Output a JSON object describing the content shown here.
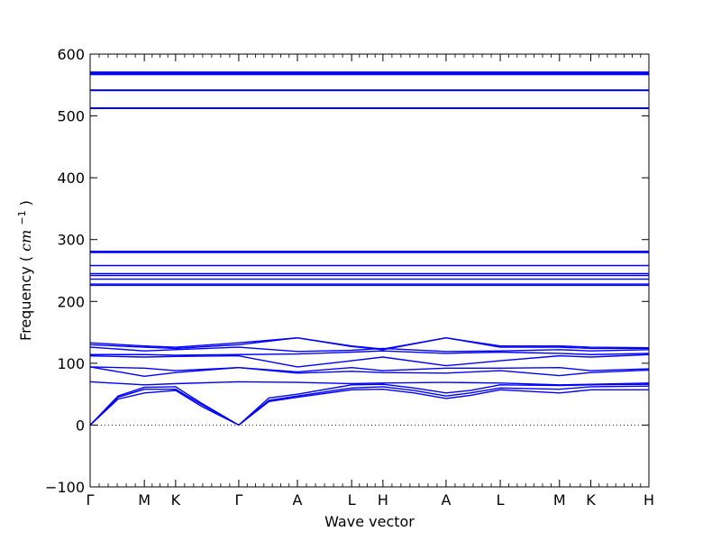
{
  "chart_data": {
    "type": "line",
    "title": "",
    "xlabel": "Wave vector",
    "ylabel_main": "Frequency (",
    "ylabel_unit_base": "cm",
    "ylabel_unit_exp": "−1",
    "ylabel_close": ")",
    "ylim": [
      -100,
      600
    ],
    "yticks": [
      -100,
      0,
      100,
      200,
      300,
      400,
      500,
      600
    ],
    "grid": false,
    "zero_line": true,
    "line_color": "#0000ff",
    "xlim": [
      0,
      100
    ],
    "x_high_symmetry": [
      {
        "label": "Γ",
        "x": 0
      },
      {
        "label": "M",
        "x": 9.7
      },
      {
        "label": "K",
        "x": 15.3
      },
      {
        "label": "Γ",
        "x": 26.6
      },
      {
        "label": "A",
        "x": 37.1
      },
      {
        "label": "L",
        "x": 46.8
      },
      {
        "label": "H",
        "x": 52.4
      },
      {
        "label": "A",
        "x": 63.7
      },
      {
        "label": "L",
        "x": 73.4
      },
      {
        "label": "M",
        "x": 84.0
      },
      {
        "label": "K",
        "x": 89.6
      },
      {
        "label": "H",
        "x": 100
      }
    ],
    "series": [
      {
        "x": [
          0,
          5,
          9.7,
          15.3,
          20,
          26.6
        ],
        "values": [
          0,
          42,
          52,
          56,
          30,
          0
        ]
      },
      {
        "x": [
          0,
          5,
          9.7,
          15.3,
          20,
          26.6
        ],
        "values": [
          0,
          45,
          58,
          58,
          33,
          0
        ]
      },
      {
        "x": [
          0,
          5,
          9.7,
          15.3,
          20,
          26.6
        ],
        "values": [
          0,
          47,
          61,
          62,
          35,
          0
        ]
      },
      {
        "x": [
          26.6,
          32,
          37.1,
          46.8,
          52.4,
          58,
          63.7,
          68,
          73.4,
          84.0,
          89.6,
          100
        ],
        "values": [
          0,
          38,
          45,
          57,
          58,
          52,
          43,
          48,
          57,
          52,
          57,
          57
        ]
      },
      {
        "x": [
          26.6,
          32,
          37.1,
          46.8,
          52.4,
          58,
          63.7,
          68,
          73.4,
          84.0,
          89.6,
          100
        ],
        "values": [
          0,
          40,
          47,
          60,
          62,
          56,
          47,
          52,
          60,
          58,
          62,
          63
        ]
      },
      {
        "x": [
          26.6,
          32,
          37.1,
          46.8,
          52.4,
          58,
          63.7,
          68,
          73.4,
          84.0,
          89.6,
          100
        ],
        "values": [
          0,
          44,
          50,
          65,
          66,
          60,
          52,
          56,
          65,
          64,
          65,
          66
        ]
      },
      {
        "x": [
          0,
          9.7,
          15.3,
          26.6,
          37.1,
          46.8,
          52.4,
          63.7,
          73.4,
          84.0,
          89.6,
          100
        ],
        "values": [
          70,
          65,
          67,
          70,
          69,
          67,
          68,
          69,
          68,
          65,
          66,
          68
        ]
      },
      {
        "x": [
          0,
          9.7,
          15.3,
          26.6,
          37.1,
          46.8,
          52.4,
          63.7,
          73.4,
          84.0,
          89.6,
          100
        ],
        "values": [
          94,
          79,
          85,
          93,
          84,
          87,
          85,
          84,
          88,
          80,
          85,
          89
        ]
      },
      {
        "x": [
          0,
          9.7,
          15.3,
          26.6,
          37.1,
          46.8,
          52.4,
          63.7,
          73.4,
          84.0,
          89.6,
          100
        ],
        "values": [
          94,
          92,
          88,
          93,
          86,
          93,
          88,
          92,
          92,
          93,
          88,
          91
        ]
      },
      {
        "x": [
          0,
          9.7,
          15.3,
          26.6,
          37.1,
          46.8,
          52.4,
          63.7,
          73.4,
          84.0,
          89.6,
          100
        ],
        "values": [
          112,
          110,
          111,
          112,
          94,
          104,
          110,
          96,
          104,
          112,
          110,
          114
        ]
      },
      {
        "x": [
          0,
          9.7,
          15.3,
          26.6,
          37.1,
          46.8,
          52.4,
          63.7,
          73.4,
          84.0,
          89.6,
          100
        ],
        "values": [
          114,
          114,
          113,
          114,
          115,
          118,
          120,
          116,
          118,
          116,
          114,
          116
        ]
      },
      {
        "x": [
          0,
          9.7,
          15.3,
          26.6,
          37.1,
          46.8,
          52.4,
          63.7,
          73.4,
          84.0,
          89.6,
          100
        ],
        "values": [
          126,
          120,
          122,
          126,
          119,
          121,
          124,
          119,
          120,
          122,
          120,
          122
        ]
      },
      {
        "x": [
          0,
          9.7,
          15.3,
          26.6,
          37.1,
          46.8,
          52.4,
          63.7,
          73.4,
          84.0,
          89.6,
          100
        ],
        "values": [
          130,
          126,
          124,
          130,
          141,
          127,
          122,
          141,
          126,
          126,
          124,
          124
        ]
      },
      {
        "x": [
          0,
          9.7,
          15.3,
          26.6,
          37.1,
          46.8,
          52.4,
          63.7,
          73.4,
          84.0,
          89.6,
          100
        ],
        "values": [
          133,
          128,
          126,
          133,
          141,
          128,
          123,
          141,
          128,
          128,
          126,
          125
        ]
      },
      {
        "x": [
          0,
          100
        ],
        "values": [
          226,
          226
        ]
      },
      {
        "x": [
          0,
          100
        ],
        "values": [
          228,
          228
        ]
      },
      {
        "x": [
          0,
          100
        ],
        "values": [
          236,
          236
        ]
      },
      {
        "x": [
          0,
          100
        ],
        "values": [
          242,
          242
        ]
      },
      {
        "x": [
          0,
          100
        ],
        "values": [
          245,
          245
        ]
      },
      {
        "x": [
          0,
          100
        ],
        "values": [
          258,
          258
        ]
      },
      {
        "x": [
          0,
          100
        ],
        "values": [
          279,
          279
        ]
      },
      {
        "x": [
          0,
          100
        ],
        "values": [
          281,
          281
        ]
      },
      {
        "x": [
          0,
          100
        ],
        "values": [
          512,
          512
        ]
      },
      {
        "x": [
          0,
          100
        ],
        "values": [
          513,
          513
        ]
      },
      {
        "x": [
          0,
          100
        ],
        "values": [
          541,
          541
        ]
      },
      {
        "x": [
          0,
          100
        ],
        "values": [
          542,
          542
        ]
      },
      {
        "x": [
          0,
          100
        ],
        "values": [
          567,
          567
        ]
      },
      {
        "x": [
          0,
          100
        ],
        "values": [
          569,
          569
        ]
      },
      {
        "x": [
          0,
          100
        ],
        "values": [
          571,
          571
        ]
      }
    ]
  }
}
